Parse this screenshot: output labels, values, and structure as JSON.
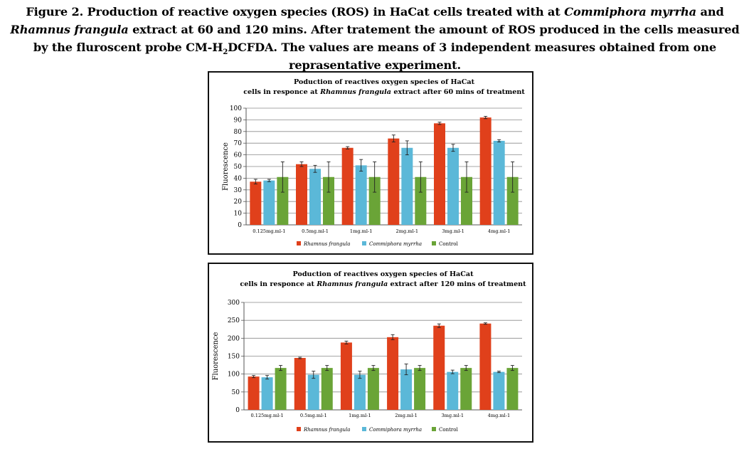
{
  "caption": {
    "prefix": "Figure 2. Production of reactive oxygen species (ROS) in HaCat cells treated with at",
    "species_1": "Commiphora myrrha",
    "and": "and",
    "species_2": "Rhamnus frangula",
    "middle": "extract at 60 and 120 mins. After tratement the amount of ROS produced in the cells measured by the fluroscent probe CM-H",
    "subscript": "2",
    "suffix": "DCFDA. The values are means of 3 independent measures obtained from one reprasentative experiment."
  },
  "colors": {
    "rhamnus": "#e0401b",
    "commiphora": "#5bb8d8",
    "control": "#6aa437",
    "grid": "#8a8a8a",
    "error_bar": "#222222"
  },
  "chart_data": [
    {
      "type": "bar",
      "title_line1": "Poduction of reactives oxygen species of HaCat",
      "title_line2_prefix": "cells in responce at",
      "title_line2_species": "Rhamnus frangula",
      "title_line2_suffix": "extract after 60 mins of treatment",
      "ylabel": "Fluorescence",
      "xlabel": "",
      "ylim": [
        0,
        100
      ],
      "yticks": [
        0,
        10,
        20,
        30,
        40,
        50,
        60,
        70,
        80,
        90,
        100
      ],
      "grid": true,
      "legend": "bottom",
      "categories": [
        "0.125mg.ml-1",
        "0.5mg.ml-1",
        "1mg.ml-1",
        "2mg.ml-1",
        "3mg.ml-1",
        "4mg.ml-1"
      ],
      "series": [
        {
          "name": "Rhamnus frangula",
          "color_key": "rhamnus",
          "values": [
            37,
            52,
            66,
            74,
            87,
            92
          ],
          "errors": [
            2,
            2,
            1,
            3,
            1,
            1
          ]
        },
        {
          "name": "Commiphora myrrha",
          "color_key": "commiphora",
          "values": [
            38,
            48,
            51,
            66,
            66,
            72
          ],
          "errors": [
            1,
            3,
            5,
            6,
            3,
            1
          ]
        },
        {
          "name": "Control",
          "color_key": "control",
          "values": [
            41,
            41,
            41,
            41,
            41,
            41
          ],
          "errors": [
            13,
            13,
            13,
            13,
            13,
            13
          ]
        }
      ]
    },
    {
      "type": "bar",
      "title_line1": "Poduction of reactives oxygen species of HaCat",
      "title_line2_prefix": "cells in responce at",
      "title_line2_species": "Rhamnus frangula",
      "title_line2_suffix": "extract after 120 mins of treatment",
      "ylabel": "Fluorescence",
      "xlabel": "",
      "ylim": [
        0,
        300
      ],
      "yticks": [
        0,
        50,
        100,
        150,
        200,
        250,
        300
      ],
      "grid": true,
      "legend": "bottom",
      "categories": [
        "0.125mg.ml-1",
        "0.5mg.ml-1",
        "1mg.ml-1",
        "2mg.ml-1",
        "3mg.ml-1",
        "4mg.ml-1"
      ],
      "series": [
        {
          "name": "Rhamnus frangula",
          "color_key": "rhamnus",
          "values": [
            93,
            145,
            188,
            203,
            235,
            241
          ],
          "errors": [
            3,
            2,
            4,
            7,
            5,
            2
          ]
        },
        {
          "name": "Commiphora myrrha",
          "color_key": "commiphora",
          "values": [
            91,
            98,
            98,
            113,
            106,
            106
          ],
          "errors": [
            5,
            10,
            10,
            15,
            5,
            2
          ]
        },
        {
          "name": "Control",
          "color_key": "control",
          "values": [
            117,
            117,
            117,
            117,
            117,
            117
          ],
          "errors": [
            7,
            7,
            7,
            7,
            7,
            7
          ]
        }
      ]
    }
  ]
}
